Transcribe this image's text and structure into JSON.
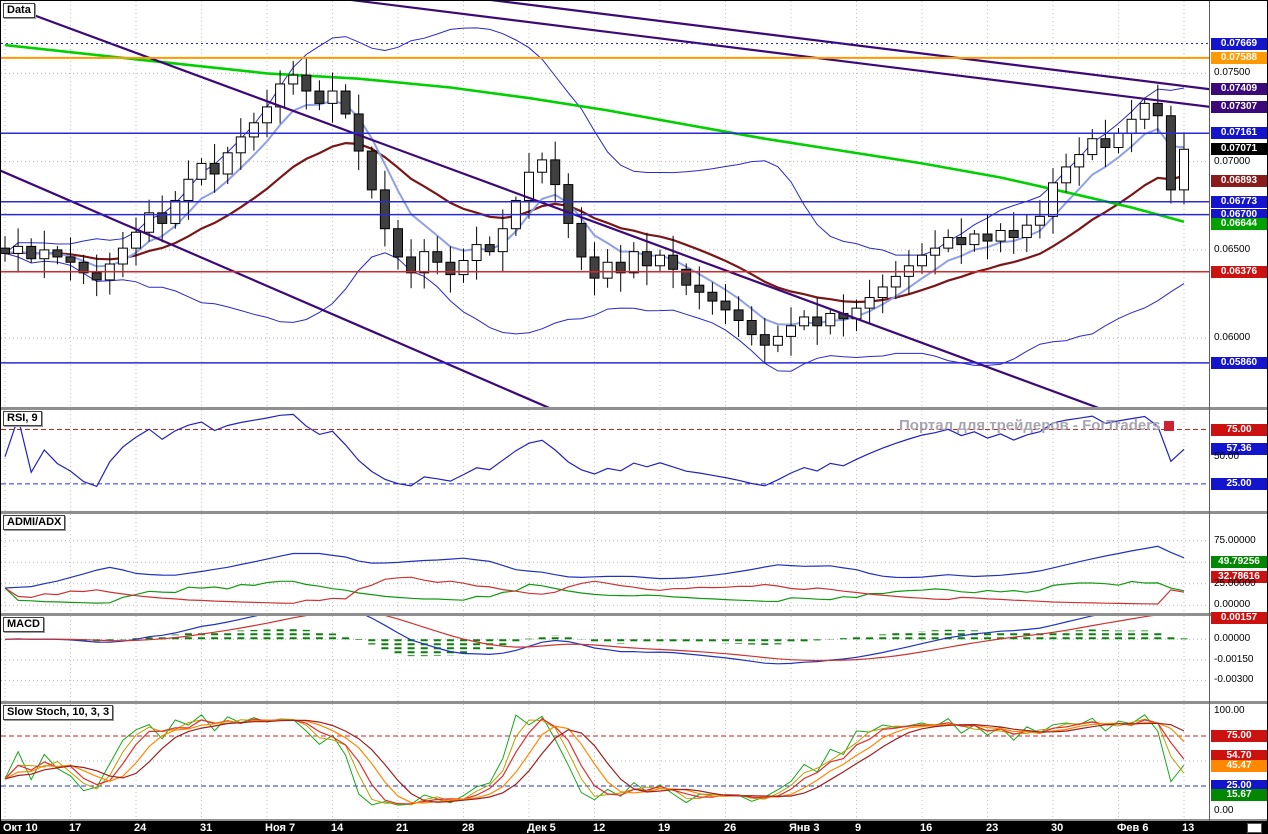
{
  "panels": {
    "main": {
      "title": "Data",
      "gridlines": [
        0.075,
        0.07,
        0.065,
        0.06
      ],
      "hlines": [
        {
          "value": 0.07669,
          "color": "#2a2ad2",
          "width": 1,
          "dash": "2,3"
        },
        {
          "value": 0.07588,
          "color": "#ff9900",
          "width": 2,
          "dash": ""
        },
        {
          "value": 0.07161,
          "color": "#2a2ad2",
          "width": 1.5,
          "dash": ""
        },
        {
          "value": 0.06773,
          "color": "#2a2ad2",
          "width": 1.5,
          "dash": ""
        },
        {
          "value": 0.067,
          "color": "#2a2ad2",
          "width": 1.5,
          "dash": ""
        },
        {
          "value": 0.06376,
          "color": "#d22a2a",
          "width": 1.5,
          "dash": ""
        },
        {
          "value": 0.0586,
          "color": "#2a2ad2",
          "width": 1.5,
          "dash": ""
        }
      ],
      "scale_labels": [
        {
          "text": "0.07669",
          "value": 0.07669,
          "bg": "#1414cc",
          "fg": "#fff"
        },
        {
          "text": "0.07588",
          "value": 0.07588,
          "bg": "#ff9900",
          "fg": "#fff"
        },
        {
          "text": "0.07500",
          "value": 0.075,
          "bg": null,
          "fg": "#000"
        },
        {
          "text": "0.07409",
          "value": 0.07409,
          "bg": "#3c0a78",
          "fg": "#fff"
        },
        {
          "text": "0.07307",
          "value": 0.07307,
          "bg": "#3c0a78",
          "fg": "#fff"
        },
        {
          "text": "0.07161",
          "value": 0.07161,
          "bg": "#1414cc",
          "fg": "#fff"
        },
        {
          "text": "0.07071",
          "value": 0.07071,
          "bg": "#000000",
          "fg": "#fff"
        },
        {
          "text": "0.07000",
          "value": 0.07,
          "bg": null,
          "fg": "#000"
        },
        {
          "text": "0.06893",
          "value": 0.06893,
          "bg": "#8b1a1a",
          "fg": "#fff"
        },
        {
          "text": "0.06773",
          "value": 0.06773,
          "bg": "#1414cc",
          "fg": "#fff"
        },
        {
          "text": "0.06700",
          "value": 0.067,
          "bg": "#1414cc",
          "fg": "#fff"
        },
        {
          "text": "0.06644",
          "value": 0.06644,
          "bg": "#00a000",
          "fg": "#fff"
        },
        {
          "text": "0.06500",
          "value": 0.065,
          "bg": null,
          "fg": "#000"
        },
        {
          "text": "0.06376",
          "value": 0.06376,
          "bg": "#cc1111",
          "fg": "#fff"
        },
        {
          "text": "0.06000",
          "value": 0.06,
          "bg": null,
          "fg": "#000"
        },
        {
          "text": "0.05860",
          "value": 0.0586,
          "bg": "#1414cc",
          "fg": "#fff"
        }
      ]
    },
    "rsi": {
      "title": "RSI, 9",
      "levels": [
        {
          "value": 75,
          "color": "#cc2222",
          "dash": "5,3"
        },
        {
          "value": 25,
          "color": "#2233cc",
          "dash": "5,3"
        }
      ],
      "scale_labels": [
        {
          "text": "75.00",
          "value": 75,
          "bg": "#cc1111",
          "fg": "#fff"
        },
        {
          "text": "57.36",
          "value": 57.36,
          "bg": "#1414cc",
          "fg": "#fff"
        },
        {
          "text": "50.00",
          "value": 50,
          "bg": null,
          "fg": "#000"
        },
        {
          "text": "25.00",
          "value": 25,
          "bg": "#1414cc",
          "fg": "#fff"
        }
      ]
    },
    "adx": {
      "title": "ADMI/ADX",
      "gridlines": [
        75,
        50,
        25,
        0
      ],
      "scale_labels": [
        {
          "text": "75.00000",
          "value": 75,
          "bg": null,
          "fg": "#000"
        },
        {
          "text": "49.79256",
          "value": 49.79256,
          "bg": "#008800",
          "fg": "#fff"
        },
        {
          "text": "32.78616",
          "value": 32.78616,
          "bg": "#cc1111",
          "fg": "#fff"
        },
        {
          "text": "25.00000",
          "value": 25,
          "bg": null,
          "fg": "#000"
        },
        {
          "text": "0.00000",
          "value": 0,
          "bg": null,
          "fg": "#000"
        }
      ]
    },
    "macd": {
      "title": "MACD",
      "gridlines": [
        0,
        -0.0015,
        -0.003
      ],
      "scale_labels": [
        {
          "text": "0.00157",
          "value": 0.00157,
          "bg": "#cc1111",
          "fg": "#fff"
        },
        {
          "text": "0.00000",
          "value": 0,
          "bg": null,
          "fg": "#000"
        },
        {
          "text": "-0.00150",
          "value": -0.0015,
          "bg": null,
          "fg": "#000"
        },
        {
          "text": "-0.00300",
          "value": -0.003,
          "bg": null,
          "fg": "#000"
        }
      ]
    },
    "stoch": {
      "title": "Slow Stoch, 10, 3, 3",
      "levels": [
        {
          "value": 75,
          "color": "#cc2222",
          "dash": "5,3"
        },
        {
          "value": 25,
          "color": "#2233cc",
          "dash": "5,3"
        }
      ],
      "gridlines": [
        50
      ],
      "scale_labels": [
        {
          "text": "100.00",
          "value": 100,
          "bg": null,
          "fg": "#000"
        },
        {
          "text": "75.00",
          "value": 75,
          "bg": "#cc1111",
          "fg": "#fff"
        },
        {
          "text": "54.70",
          "value": 54.7,
          "bg": "#cc1111",
          "fg": "#fff"
        },
        {
          "text": "45.47",
          "value": 45.47,
          "bg": "#ff8800",
          "fg": "#fff"
        },
        {
          "text": "25.00",
          "value": 25,
          "bg": "#1414cc",
          "fg": "#fff"
        },
        {
          "text": "15.67",
          "value": 15.67,
          "bg": "#008800",
          "fg": "#fff"
        },
        {
          "text": "0.00",
          "value": 0,
          "bg": null,
          "fg": "#000"
        }
      ]
    }
  },
  "watermark": {
    "text": "Портал для трейдеров - ForTraders"
  },
  "time_axis": {
    "labels": [
      "Окт 10",
      "17",
      "24",
      "31",
      "Ноя 7",
      "14",
      "21",
      "28",
      "Дек 5",
      "12",
      "19",
      "26",
      "Янв 3",
      "9",
      "16",
      "23",
      "30",
      "Фев 6",
      "13"
    ],
    "label_step": 5
  },
  "chart_data": {
    "type": "candlestick",
    "title": "Data",
    "x_labels": [
      "Окт 10",
      "17",
      "24",
      "31",
      "Ноя 7",
      "14",
      "21",
      "28",
      "Дек 5",
      "12",
      "19",
      "26",
      "Янв 3",
      "9",
      "16",
      "23",
      "30",
      "Фев 6",
      "13"
    ],
    "price_axis": {
      "top": 0.0791,
      "bottom": 0.0561,
      "gridlines": [
        0.075,
        0.07,
        0.065,
        0.06
      ]
    },
    "closes": [
      0.0648,
      0.0652,
      0.0645,
      0.065,
      0.0646,
      0.0643,
      0.0637,
      0.0633,
      0.0642,
      0.0651,
      0.066,
      0.0671,
      0.0665,
      0.0678,
      0.069,
      0.0699,
      0.0693,
      0.0705,
      0.0714,
      0.0722,
      0.0731,
      0.0744,
      0.0749,
      0.074,
      0.0733,
      0.074,
      0.0727,
      0.0706,
      0.0684,
      0.0662,
      0.0646,
      0.0637,
      0.0649,
      0.0643,
      0.0636,
      0.0644,
      0.0653,
      0.0649,
      0.0662,
      0.0678,
      0.0694,
      0.0701,
      0.0687,
      0.0665,
      0.0646,
      0.0634,
      0.0643,
      0.0637,
      0.0649,
      0.0641,
      0.0647,
      0.0639,
      0.063,
      0.0626,
      0.0621,
      0.0616,
      0.061,
      0.0602,
      0.0596,
      0.0601,
      0.0607,
      0.0612,
      0.0607,
      0.0614,
      0.0611,
      0.0617,
      0.0623,
      0.0629,
      0.0635,
      0.0641,
      0.0647,
      0.0651,
      0.0657,
      0.0653,
      0.0659,
      0.0655,
      0.0661,
      0.0657,
      0.0664,
      0.0669,
      0.0688,
      0.0697,
      0.0704,
      0.0713,
      0.0708,
      0.0716,
      0.0724,
      0.0733,
      0.0726,
      0.0684,
      0.0707
    ],
    "indicators": {
      "bollinger": {
        "period": 20,
        "dev": 2
      },
      "ema_fast": {
        "period": 6
      },
      "ema_slow": {
        "period": 18
      },
      "rsi": {
        "period": 9
      },
      "adx": {
        "period": 9
      },
      "macd": {
        "fast": 12,
        "slow": 26,
        "signal": 9
      },
      "stoch": {
        "period": 10,
        "k": 3,
        "d": 3
      }
    },
    "htf_ma_points": [
      [
        0,
        0.0766
      ],
      [
        10,
        0.0758
      ],
      [
        20,
        0.075
      ],
      [
        27,
        0.0747
      ],
      [
        34,
        0.0742
      ],
      [
        40,
        0.0736
      ],
      [
        46,
        0.0729
      ],
      [
        52,
        0.0721
      ],
      [
        58,
        0.0713
      ],
      [
        64,
        0.0706
      ],
      [
        70,
        0.0699
      ],
      [
        76,
        0.0691
      ],
      [
        82,
        0.0681
      ],
      [
        86,
        0.0674
      ],
      [
        90,
        0.0666
      ]
    ],
    "trendlines": [
      {
        "p1": [
          -1,
          0.0697
        ],
        "p2": [
          42,
          0.0559
        ],
        "color": "#3c0a78",
        "width": 2.2
      },
      {
        "p1": [
          0,
          0.0789
        ],
        "p2": [
          84,
          0.0559
        ],
        "color": "#3c0a78",
        "width": 2.2
      },
      {
        "p1": [
          3,
          0.0823
        ],
        "p2": [
          92,
          0.0741
        ],
        "color": "#3c0a78",
        "width": 2.2
      },
      {
        "p1": [
          0,
          0.0816
        ],
        "p2": [
          92,
          0.0731
        ],
        "color": "#3c0a78",
        "width": 2.2
      }
    ]
  }
}
